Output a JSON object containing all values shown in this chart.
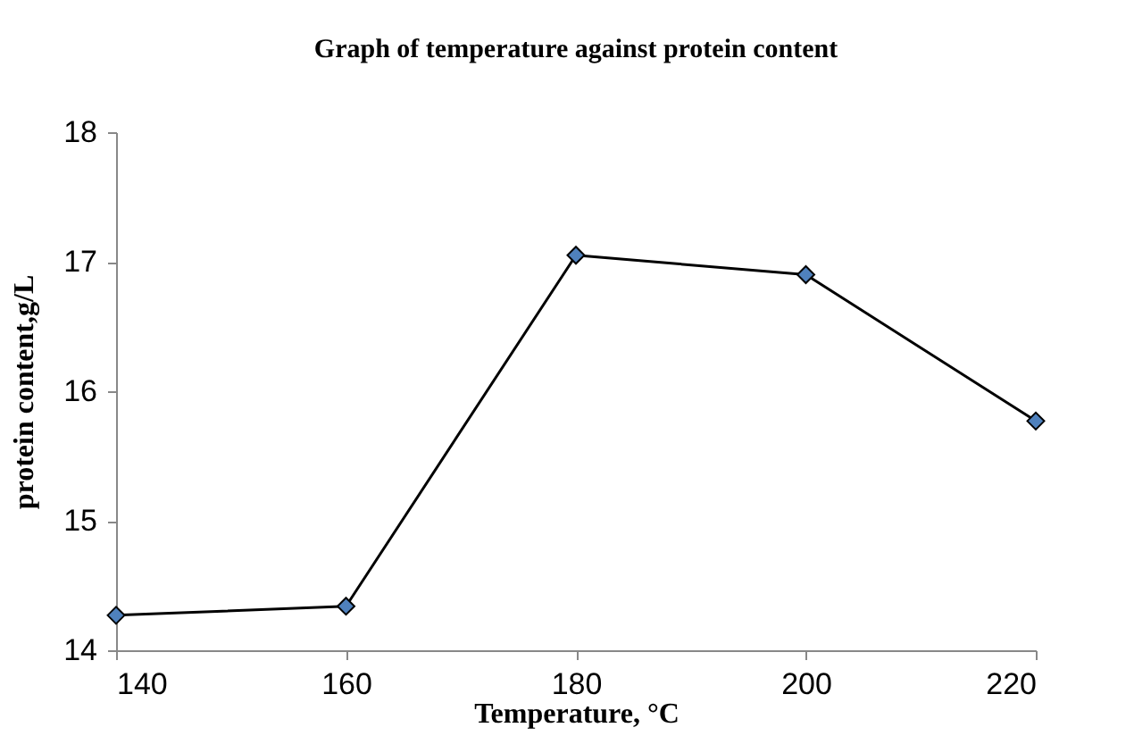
{
  "chart_data": {
    "type": "line",
    "title": "Graph of temperature against protein content",
    "xlabel": "Temperature, °C",
    "ylabel": "protein content,g/L",
    "x": [
      140,
      160,
      180,
      200,
      220
    ],
    "series": [
      {
        "color": "#4f81bd",
        "values": [
          14.27,
          14.34,
          17.05,
          16.9,
          15.77
        ]
      }
    ],
    "xlim": [
      140,
      220
    ],
    "xticks": [
      140,
      160,
      180,
      200,
      220
    ],
    "ylim": [
      14,
      18
    ],
    "yticks": [
      14,
      15,
      16,
      17,
      18
    ],
    "grid": false,
    "marker": "diamond",
    "line_style": "solid"
  }
}
